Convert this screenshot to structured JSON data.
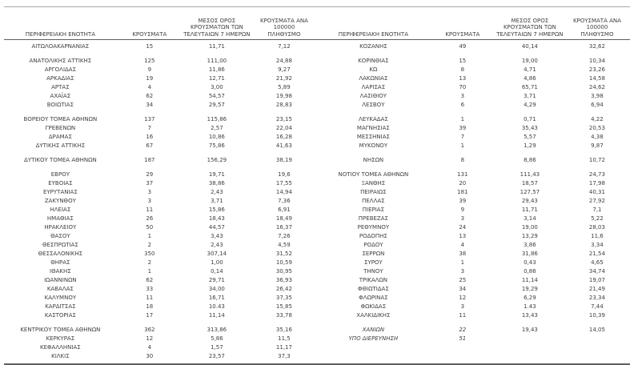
{
  "colors": {
    "text": "#3f3f3f",
    "border_light": "#a8a8a8",
    "border_dark": "#5f5f5f"
  },
  "table": {
    "headers": [
      "ΠΕΡΙΦΕΡΕΙΑΚΗ ΕΝΟΤΗΤΑ",
      "ΚΡΟΥΣΜΑΤΑ",
      "ΜΕΣΟΣ ΟΡΟΣ\nΚΡΟΥΣΜΑΤΩΝ ΤΩΝ\nΤΕΛΕΥΤΑΙΩΝ 7 ΗΜΕΡΩΝ",
      "ΚΡΟΥΣΜΑΤΑ ΑΝΑ 100000\nΠΛΗΘΥΣΜΟ"
    ],
    "left_rows": [
      [
        "ΑΙΤΩΛΟΑΚΑΡΝΑΝΙΑΣ",
        "15",
        "11,71",
        "7,12"
      ],
      null,
      [
        "ΑΝΑΤΟΛΙΚΗΣ ΑΤΤΙΚΗΣ",
        "125",
        "111,00",
        "24,88"
      ],
      [
        "ΑΡΓΟΛΙΔΑΣ",
        "9",
        "11,86",
        "9,27"
      ],
      [
        "ΑΡΚΑΔΙΑΣ",
        "19",
        "12,71",
        "21,92"
      ],
      [
        "ΑΡΤΑΣ",
        "4",
        "3,00",
        "5,89"
      ],
      [
        "ΑΧΑΪΑΣ",
        "62",
        "54,57",
        "19,98"
      ],
      [
        "ΒΟΙΩΤΙΑΣ",
        "34",
        "29,57",
        "28,83"
      ],
      null,
      [
        "ΒΟΡΕΙΟΥ ΤΟΜΕΑ ΑΘΗΝΩΝ",
        "137",
        "115,86",
        "23,15"
      ],
      [
        "ΓΡΕΒΕΝΩΝ",
        "7",
        "2,57",
        "22,04"
      ],
      [
        "ΔΡΑΜΑΣ",
        "16",
        "10,86",
        "16,28"
      ],
      [
        "ΔΥΤΙΚΗΣ ΑΤΤΙΚΗΣ",
        "67",
        "75,86",
        "41,63"
      ],
      null,
      [
        "ΔΥΤΙΚΟΥ ΤΟΜΕΑ ΑΘΗΝΩΝ",
        "187",
        "156,29",
        "38,19"
      ],
      null,
      [
        "ΕΒΡΟΥ",
        "29",
        "19,71",
        "19,6"
      ],
      [
        "ΕΥΒΟΙΑΣ",
        "37",
        "38,86",
        "17,55"
      ],
      [
        "ΕΥΡΥΤΑΝΙΑΣ",
        "3",
        "2,43",
        "14,94"
      ],
      [
        "ΖΑΚΥΝΘΟΥ",
        "3",
        "3,71",
        "7,36"
      ],
      [
        "ΗΛΕΙΑΣ",
        "11",
        "15,86",
        "6,91"
      ],
      [
        "ΗΜΑΘΙΑΣ",
        "26",
        "18,43",
        "18,49"
      ],
      [
        "ΗΡΑΚΛΕΙΟΥ",
        "50",
        "44,57",
        "16,37"
      ],
      [
        "ΘΑΣΟΥ",
        "1",
        "3,43",
        "7,26"
      ],
      [
        "ΘΕΣΠΡΩΤΙΑΣ",
        "2",
        "2,43",
        "4,59"
      ],
      [
        "ΘΕΣΣΑΛΟΝΙΚΗΣ",
        "350",
        "307,14",
        "31,52"
      ],
      [
        "ΘΗΡΑΣ",
        "2",
        "1,00",
        "10,59"
      ],
      [
        "ΙΘΑΚΗΣ",
        "1",
        "0,14",
        "30,95"
      ],
      [
        "ΙΩΑΝΝΙΝΩΝ",
        "62",
        "29,71",
        "36,93"
      ],
      [
        "ΚΑΒΑΛΑΣ",
        "33",
        "34,00",
        "26,42"
      ],
      [
        "ΚΑΛΥΜΝΟΥ",
        "11",
        "16,71",
        "37,35"
      ],
      [
        "ΚΑΡΔΙΤΣΑΣ",
        "18",
        "10.43",
        "15,85"
      ],
      [
        "ΚΑΣΤΟΡΙΑΣ",
        "17",
        "11,14",
        "33,78"
      ],
      null,
      [
        "ΚΕΝΤΡΙΚΟΥ ΤΟΜΕΑ ΑΘΗΝΩΝ",
        "362",
        "313,86",
        "35,16"
      ],
      [
        "ΚΕΡΚΥΡΑΣ",
        "12",
        "5,86",
        "11,5"
      ],
      [
        "ΚΕΦΑΛΛΗΝΙΑΣ",
        "4",
        "1,57",
        "11,17"
      ],
      [
        "ΚΙΛΚΙΣ",
        "30",
        "23,57",
        "37,3"
      ]
    ],
    "right_rows": [
      [
        "ΚΟΖΑΝΗΣ",
        "49",
        "40,14",
        "32,62"
      ],
      null,
      [
        "ΚΟΡΙΝΘΙΑΣ",
        "15",
        "19,00",
        "10,34"
      ],
      [
        "ΚΩ",
        "8",
        "4,71",
        "23,26"
      ],
      [
        "ΛΑΚΩΝΙΑΣ",
        "13",
        "4,86",
        "14,58"
      ],
      [
        "ΛΑΡΙΣΑΣ",
        "70",
        "65,71",
        "24,62"
      ],
      [
        "ΛΑΣΙΘΙΟΥ",
        "3",
        "3,71",
        "3,98"
      ],
      [
        "ΛΕΣΒΟΥ",
        "6",
        "4,29",
        "6,94"
      ],
      null,
      [
        "ΛΕΥΚΑΔΑΣ",
        "1",
        "0,71",
        "4,22"
      ],
      [
        "ΜΑΓΝΗΣΙΑΣ",
        "39",
        "35,43",
        "20,53"
      ],
      [
        "ΜΕΣΣΗΝΙΑΣ",
        "7",
        "5,57",
        "4,38"
      ],
      [
        "ΜΥΚΟΝΟΥ",
        "1",
        "1,29",
        "9,87"
      ],
      null,
      [
        "ΝΗΣΩΝ",
        "8",
        "8,86",
        "10,72"
      ],
      null,
      [
        "ΝΟΤΙΟΥ ΤΟΜΕΑ ΑΘΗΝΩΝ",
        "131",
        "111,43",
        "24,73"
      ],
      [
        "ΞΑΝΘΗΣ",
        "20",
        "18,57",
        "17,98"
      ],
      [
        "ΠΕΙΡΑΙΩΣ",
        "181",
        "127,57",
        "40,31"
      ],
      [
        "ΠΕΛΛΑΣ",
        "39",
        "29,43",
        "27,92"
      ],
      [
        "ΠΙΕΡΙΑΣ",
        "9",
        "11,71",
        "7,1"
      ],
      [
        "ΠΡΕΒΕΖΑΣ",
        "3",
        "3,14",
        "5,22"
      ],
      [
        "ΡΕΘΥΜΝΟΥ",
        "24",
        "19,00",
        "28,03"
      ],
      [
        "ΡΟΔΟΠΗΣ",
        "13",
        "13,29",
        "11,6"
      ],
      [
        "ΡΟΔΟΥ",
        "4",
        "3,86",
        "3,34"
      ],
      [
        "ΣΕΡΡΩΝ",
        "38",
        "31,86",
        "21,54"
      ],
      [
        "ΣΥΡΟΥ",
        "1",
        "0,43",
        "4,65"
      ],
      [
        "ΤΗΝΟΥ",
        "3",
        "0,86",
        "34,74"
      ],
      [
        "ΤΡΙΚΑΛΩΝ",
        "25",
        "11,14",
        "19,07"
      ],
      [
        "ΦΘΙΩΤΙΔΑΣ",
        "34",
        "19,29",
        "21,49"
      ],
      [
        "ΦΛΩΡΙΝΑΣ",
        "12",
        "6,29",
        "23,34"
      ],
      [
        "ΦΩΚΙΔΑΣ",
        "3",
        "1.43",
        "7,44"
      ],
      [
        "ΧΑΛΚΙΔΙΚΗΣ",
        "11",
        "13,43",
        "10,39"
      ],
      null,
      {
        "cells": [
          "ΧΑΝΙΩΝ",
          "22",
          "19,43",
          "14,05"
        ],
        "italic": true
      },
      {
        "cells": [
          "ΥΠΟ ΔΙΕΡΕΥΝΗΣΗ",
          "51",
          "",
          ""
        ],
        "italic": true
      },
      [
        "",
        "",
        "",
        ""
      ],
      [
        "",
        "",
        "",
        ""
      ]
    ]
  }
}
